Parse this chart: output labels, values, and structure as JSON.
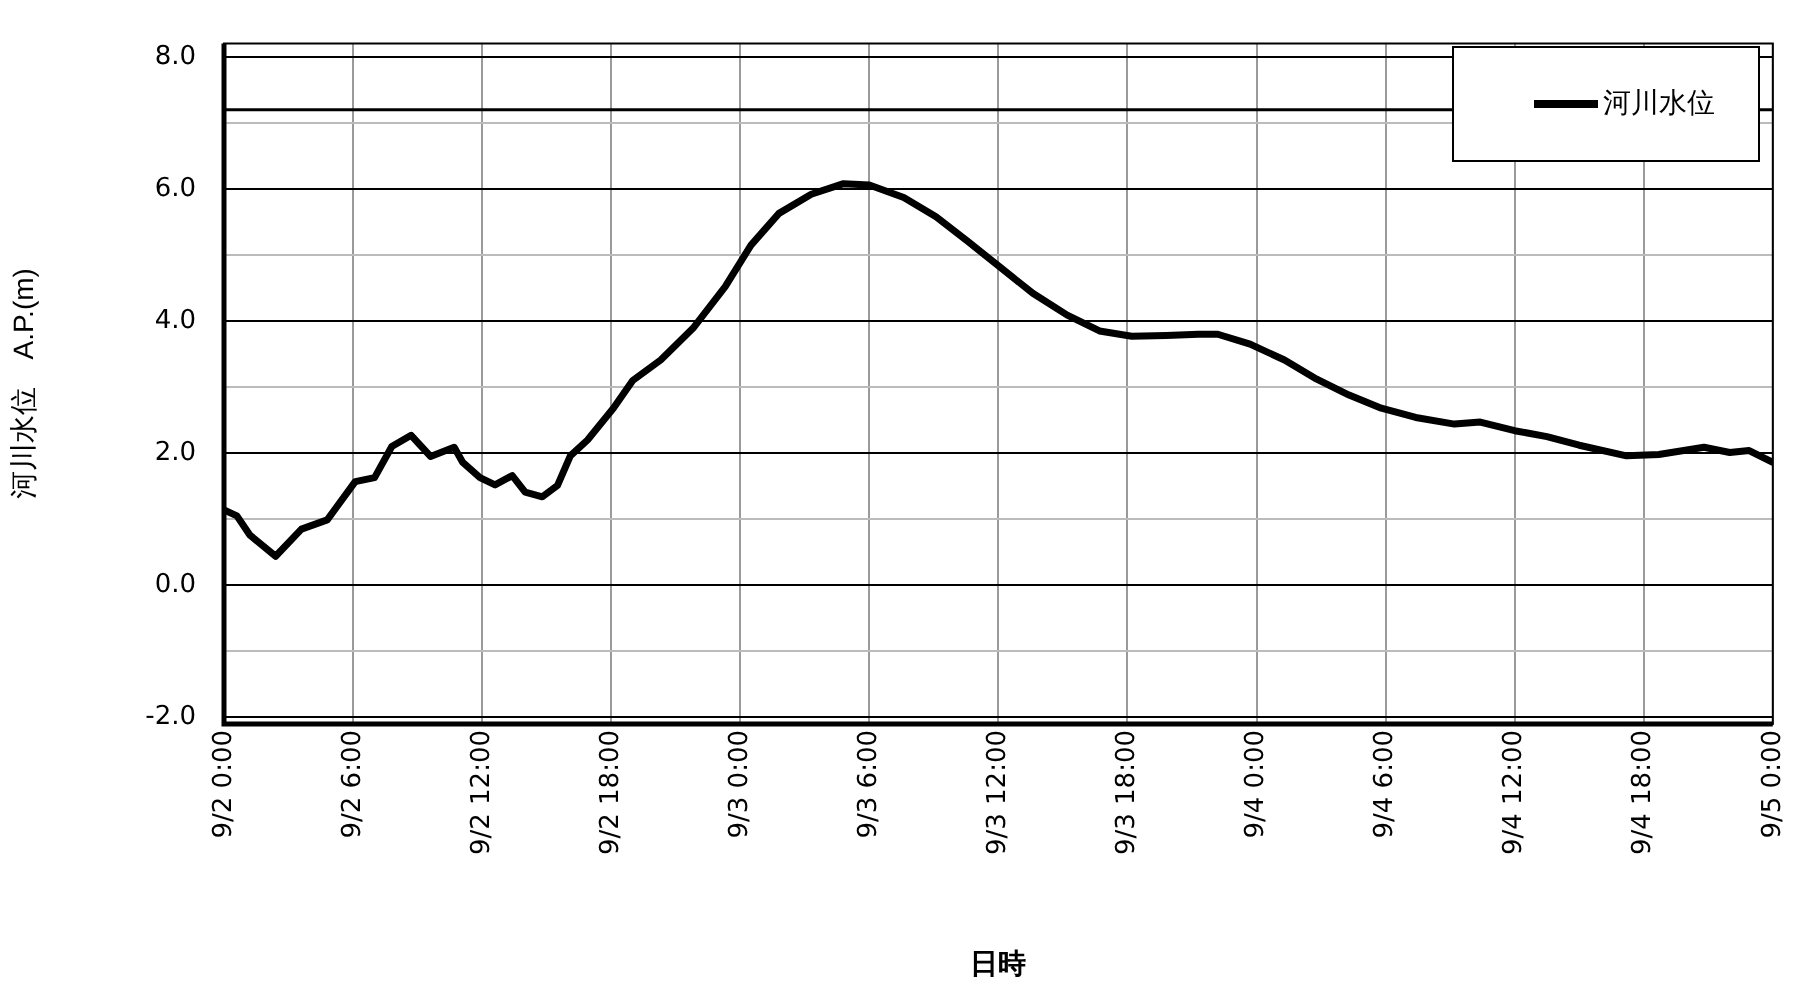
{
  "chart_data": {
    "type": "line",
    "xlabel": "日時",
    "ylabel": "河川水位　A.P.(m)",
    "x": [
      "--09-02T00:00",
      "--09-02T00:36",
      "--09-02T01:12",
      "--09-02T02:24",
      "--09-02T03:36",
      "--09-02T04:48",
      "--09-02T06:06",
      "--09-02T07:00",
      "--09-02T07:48",
      "--09-02T08:42",
      "--09-02T09:36",
      "--09-02T10:42",
      "--09-02T11:06",
      "--09-02T11:54",
      "--09-02T12:36",
      "--09-02T13:24",
      "--09-02T14:00",
      "--09-02T14:48",
      "--09-02T15:30",
      "--09-02T16:06",
      "--09-02T16:54",
      "--09-02T18:06",
      "--09-02T19:00",
      "--09-02T20:18",
      "--09-02T21:48",
      "--09-02T23:18",
      "--09-03T00:30",
      "--09-03T01:48",
      "--09-03T03:18",
      "--09-03T04:48",
      "--09-03T06:00",
      "--09-03T07:36",
      "--09-03T09:06",
      "--09-03T10:36",
      "--09-03T12:06",
      "--09-03T13:36",
      "--09-03T15:12",
      "--09-03T16:42",
      "--09-03T18:12",
      "--09-03T19:48",
      "--09-03T21:18",
      "--09-03T22:12",
      "--09-03T23:42",
      "--09-04T01:18",
      "--09-04T02:48",
      "--09-04T04:18",
      "--09-04T05:48",
      "--09-04T07:24",
      "--09-04T09:12",
      "--09-04T10:24",
      "--09-04T12:00",
      "--09-04T13:30",
      "--09-04T15:00",
      "--09-04T17:12",
      "--09-04T18:42",
      "--09-04T20:48",
      "--09-04T22:00",
      "--09-04T22:54",
      "--09-05T00:00"
    ],
    "series": [
      {
        "name": "河川水位",
        "color": "#000000",
        "values": [
          1.14,
          1.05,
          0.76,
          0.44,
          0.85,
          0.99,
          1.57,
          1.63,
          2.1,
          2.27,
          1.95,
          2.09,
          1.86,
          1.63,
          1.52,
          1.66,
          1.41,
          1.34,
          1.51,
          1.96,
          2.2,
          2.68,
          3.1,
          3.41,
          3.89,
          4.52,
          5.15,
          5.63,
          5.92,
          6.08,
          6.06,
          5.87,
          5.58,
          5.2,
          4.81,
          4.42,
          4.09,
          3.85,
          3.77,
          3.78,
          3.8,
          3.8,
          3.65,
          3.41,
          3.12,
          2.88,
          2.68,
          2.54,
          2.44,
          2.47,
          2.34,
          2.25,
          2.12,
          1.96,
          1.98,
          2.09,
          2.01,
          2.04,
          1.86
        ]
      }
    ],
    "xlim": [
      "--09-02T00:00",
      "--09-05T00:00"
    ],
    "xticks": [
      {
        "value": "--09-02T00:00",
        "label": "9/2 0:00"
      },
      {
        "value": "--09-02T06:00",
        "label": "9/2 6:00"
      },
      {
        "value": "--09-02T12:00",
        "label": "9/2 12:00"
      },
      {
        "value": "--09-02T18:00",
        "label": "9/2 18:00"
      },
      {
        "value": "--09-03T00:00",
        "label": "9/3 0:00"
      },
      {
        "value": "--09-03T06:00",
        "label": "9/3 6:00"
      },
      {
        "value": "--09-03T12:00",
        "label": "9/3 12:00"
      },
      {
        "value": "--09-03T18:00",
        "label": "9/3 18:00"
      },
      {
        "value": "--09-04T00:00",
        "label": "9/4 0:00"
      },
      {
        "value": "--09-04T06:00",
        "label": "9/4 6:00"
      },
      {
        "value": "--09-04T12:00",
        "label": "9/4 12:00"
      },
      {
        "value": "--09-04T18:00",
        "label": "9/4 18:00"
      },
      {
        "value": "--09-05T00:00",
        "label": "9/5 0:00"
      }
    ],
    "ylim": [
      -2.1,
      8.2
    ],
    "yticks": [
      {
        "value": -2,
        "label": "-2.0"
      },
      {
        "value": -1,
        "label": null
      },
      {
        "value": 0,
        "label": "0.0"
      },
      {
        "value": 1,
        "label": null
      },
      {
        "value": 2,
        "label": "2.0"
      },
      {
        "value": 3,
        "label": null
      },
      {
        "value": 4,
        "label": "4.0"
      },
      {
        "value": 5,
        "label": null
      },
      {
        "value": 6,
        "label": "6.0"
      },
      {
        "value": 7,
        "label": null
      },
      {
        "value": 8,
        "label": "8.0"
      }
    ],
    "ref_lines": [
      {
        "axis": "y",
        "value": 7.2,
        "color": "#000000"
      }
    ],
    "grid": true,
    "legend": "top right",
    "marker": "none",
    "line_style": "solid"
  }
}
